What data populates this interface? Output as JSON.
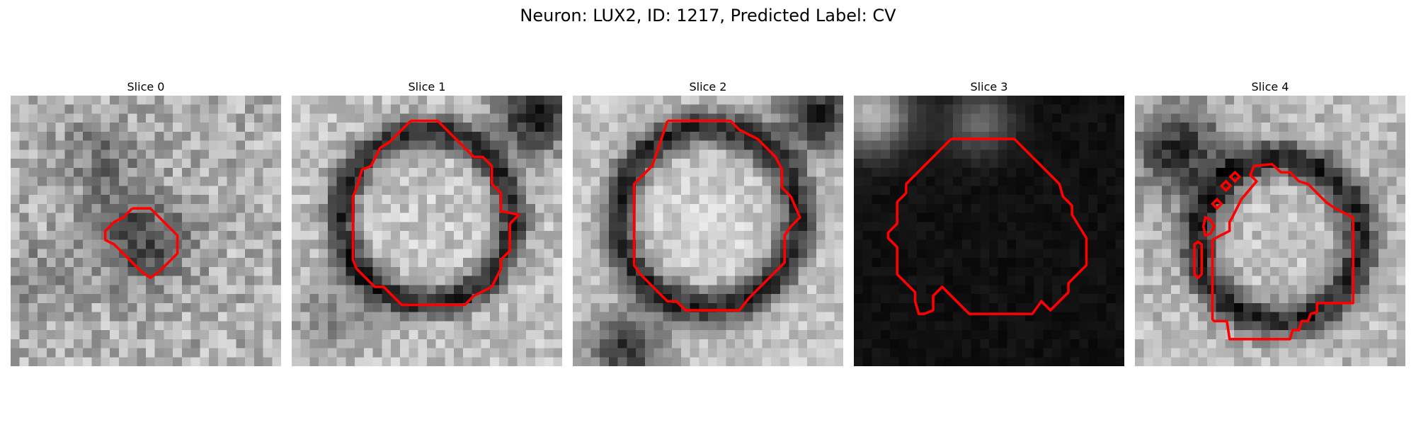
{
  "figure": {
    "title": "Neuron: LUX2, ID: 1217, Predicted Label: CV",
    "contour_color": "#ff0000",
    "colormap": "gray"
  },
  "panels": [
    {
      "title": "Slice 0"
    },
    {
      "title": "Slice 1"
    },
    {
      "title": "Slice 2"
    },
    {
      "title": "Slice 3"
    },
    {
      "title": "Slice 4"
    }
  ]
}
